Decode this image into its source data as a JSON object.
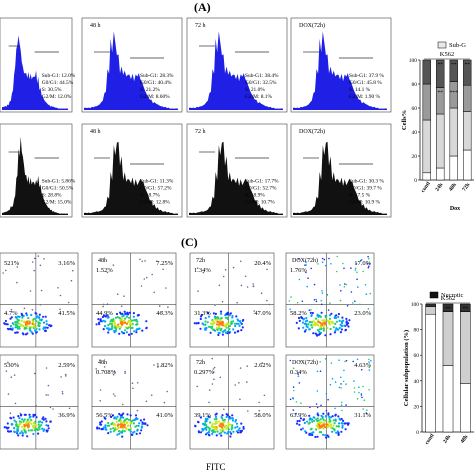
{
  "panel_labels": {
    "a": "(A)",
    "c": "(C)"
  },
  "chart_data": [
    {
      "type": "histogram",
      "group": "cell-cycle histograms, row 1 (blue)",
      "colors": {
        "fill": "#1f1fe6"
      },
      "panels": [
        {
          "label": "",
          "stats": []
        },
        {
          "label": "48 h",
          "stats": [
            "Sub-G1: 28.3%",
            "G0/G1: 40.4%",
            "S: 21.2%",
            "G2/M: 8.60%"
          ]
        },
        {
          "label": "72 h",
          "stats": [
            "Sub-G1: 38.4%",
            "G0/G1: 32.5%",
            "S: 21.0%",
            "G2/M: 8.1%"
          ]
        },
        {
          "label": "DOX(72h)",
          "stats": [
            "Sub-G1: 37.9 %",
            "G0/G1: 45.8 %",
            "S: 14.1 %",
            "G2/M: 1.90 %"
          ]
        }
      ],
      "first_panel_stats": [
        "Sub-G1: 12.0%",
        "G0/G1: 44.5%",
        "S: 30.5%",
        "G2/M: 12.0%"
      ]
    },
    {
      "type": "histogram",
      "group": "cell-cycle histograms, row 2 (black)",
      "colors": {
        "fill": "#111111"
      },
      "panels": [
        {
          "label": "",
          "stats": [
            "Sub-G1: 5.86%",
            "G0/G1: 50.5%",
            "S: 28.8%",
            "G2/M: 15.0%"
          ]
        },
        {
          "label": "48 h",
          "stats": [
            "Sub-G1: 11.3%",
            "G0/G1: 57.2%",
            "S: 18.7%",
            "G2/M: 12.8%"
          ]
        },
        {
          "label": "72 h",
          "stats": [
            "Sub-G1: 17.7%",
            "G0/G1: 52.7%",
            "S: 18.9%",
            "G2/M: 10.7%"
          ]
        },
        {
          "label": "DOX(72h)",
          "stats": [
            "Sub-G1: 30.3 %",
            "G0/G1: 39.7 %",
            "S: 17.5 %",
            "G2/M: 10.9 %"
          ]
        }
      ]
    },
    {
      "type": "stacked-bar",
      "group": "cell-cycle distribution summary",
      "title": "K562",
      "ylabel": "Cells%",
      "xlabel": "Dox",
      "ylim": [
        0,
        100
      ],
      "yticks": [
        "0",
        "20",
        "40",
        "60",
        "80",
        "100"
      ],
      "categories": [
        "contl",
        "24h",
        "48h",
        "72h"
      ],
      "legend": [
        "Sub-G"
      ],
      "series": [
        {
          "values": [
            6,
            10,
            20,
            25
          ],
          "color": "#ffffff"
        },
        {
          "values": [
            44,
            45,
            40,
            32
          ],
          "color": "#d8d8d8"
        },
        {
          "values": [
            30,
            22,
            22,
            22
          ],
          "color": "#9a9a9a"
        },
        {
          "values": [
            20,
            23,
            18,
            21
          ],
          "color": "#555555"
        }
      ],
      "annotations": [
        "**",
        "**",
        "**",
        "**",
        "**",
        "***"
      ]
    },
    {
      "type": "scatter-quadrant",
      "group": "Annexin V / PI flow cytometry",
      "xlabel": "FITC",
      "rows": [
        [
          {
            "label": "",
            "quadrants": [
              "521%",
              "3.16%",
              "41.5%",
              "4.7%"
            ]
          },
          {
            "label": "48h",
            "quadrants": [
              "1.52%",
              "7.25%",
              "46.3%",
              "44.9%"
            ]
          },
          {
            "label": "72h",
            "quadrants": [
              "1.34%",
              "20.4%",
              "47.0%",
              "31.3%"
            ]
          },
          {
            "label": "DOX(72h)",
            "quadrants": [
              "1.76%",
              "17.0%",
              "23.0%",
              "58.2%"
            ]
          }
        ],
        [
          {
            "label": "",
            "quadrants": [
              "530%",
              "2.59%",
              "36.9%",
              ""
            ]
          },
          {
            "label": "48h",
            "quadrants": [
              "0.708%",
              "1.82%",
              "41.0%",
              "56.5%"
            ]
          },
          {
            "label": "72h",
            "quadrants": [
              "0.297%",
              "2.62%",
              "58.0%",
              "39.1%"
            ]
          },
          {
            "label": "DOX(72h)",
            "quadrants": [
              "0.34%",
              "4.63%",
              "31.1%",
              "63.9%"
            ]
          }
        ]
      ]
    },
    {
      "type": "stacked-bar",
      "group": "cellular subpopulation summary",
      "title": "K562",
      "ylabel": "Cellular subpopulation (%)",
      "ylim": [
        0,
        100
      ],
      "yticks": [
        "0",
        "20",
        "40",
        "60",
        "80",
        "100"
      ],
      "categories": [
        "contl",
        "24h",
        "48h"
      ],
      "legend": [
        "Necrotic"
      ],
      "series": [
        {
          "values": [
            92,
            52,
            38
          ],
          "color": "#ffffff"
        },
        {
          "values": [
            6,
            42,
            56
          ],
          "color": "#cfcfcf"
        },
        {
          "values": [
            2,
            6,
            6
          ],
          "color": "#333333"
        }
      ],
      "annotations": [
        "**",
        "**"
      ]
    }
  ]
}
